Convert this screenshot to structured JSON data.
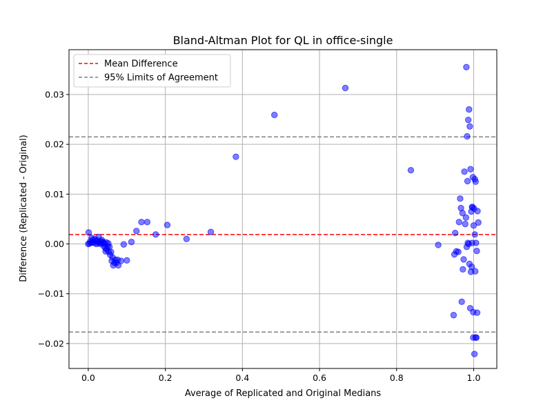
{
  "chart_data": {
    "type": "scatter",
    "title": "Bland-Altman Plot for QL in office-single",
    "xlabel": "Average of Replicated and Original Medians",
    "ylabel": "Difference (Replicated - Original)",
    "xlim": [
      -0.05,
      1.06
    ],
    "ylim": [
      -0.025,
      0.039
    ],
    "grid": true,
    "legend_position": "top-left",
    "xticks": [
      0.0,
      0.2,
      0.4,
      0.6,
      0.8,
      1.0
    ],
    "xtick_labels": [
      "0.0",
      "0.2",
      "0.4",
      "0.6",
      "0.8",
      "1.0"
    ],
    "yticks": [
      -0.02,
      -0.01,
      0.0,
      0.01,
      0.02,
      0.03
    ],
    "ytick_labels": [
      "−0.02",
      "−0.01",
      "0.00",
      "0.01",
      "0.02",
      "0.03"
    ],
    "colors": {
      "points": "#0000ff",
      "mean_line": "#ff0000",
      "limit_lines": "#808080",
      "grid": "#b0b0b0"
    },
    "reference_lines": [
      {
        "name": "Mean Difference",
        "y": 0.0019,
        "color": "#ff0000",
        "style": "dashed"
      },
      {
        "name": "95% Limits of Agreement",
        "y": 0.0215,
        "color": "#808080",
        "style": "dashed"
      },
      {
        "name": "",
        "y": -0.0177,
        "color": "#808080",
        "style": "dashed"
      }
    ],
    "legend": [
      "Mean Difference",
      "95% Limits of Agreement"
    ],
    "points": [
      {
        "x": 0.0,
        "y": 0.0
      },
      {
        "x": 0.001,
        "y": 0.0023
      },
      {
        "x": 0.003,
        "y": 0.0001
      },
      {
        "x": 0.005,
        "y": 0.0005
      },
      {
        "x": 0.007,
        "y": 0.0002
      },
      {
        "x": 0.009,
        "y": 0.0012
      },
      {
        "x": 0.011,
        "y": 0.0008
      },
      {
        "x": 0.013,
        "y": 0.0004
      },
      {
        "x": 0.015,
        "y": 0.0002
      },
      {
        "x": 0.017,
        "y": 0.001
      },
      {
        "x": 0.019,
        "y": 0.0006
      },
      {
        "x": 0.021,
        "y": 0.0
      },
      {
        "x": 0.023,
        "y": 0.0007
      },
      {
        "x": 0.025,
        "y": 0.0002
      },
      {
        "x": 0.027,
        "y": 0.0014
      },
      {
        "x": 0.029,
        "y": 0.0003
      },
      {
        "x": 0.031,
        "y": 0.0
      },
      {
        "x": 0.033,
        "y": 0.0005
      },
      {
        "x": 0.035,
        "y": 0.0008
      },
      {
        "x": 0.037,
        "y": 0.0002
      },
      {
        "x": 0.039,
        "y": 0.0004
      },
      {
        "x": 0.04,
        "y": -0.0004
      },
      {
        "x": 0.042,
        "y": 0.0001
      },
      {
        "x": 0.044,
        "y": -0.0008
      },
      {
        "x": 0.045,
        "y": -0.0015
      },
      {
        "x": 0.047,
        "y": 0.0003
      },
      {
        "x": 0.048,
        "y": -0.0011
      },
      {
        "x": 0.05,
        "y": -0.0005
      },
      {
        "x": 0.052,
        "y": 0.0001
      },
      {
        "x": 0.053,
        "y": -0.0016
      },
      {
        "x": 0.055,
        "y": -0.0006
      },
      {
        "x": 0.057,
        "y": -0.0022
      },
      {
        "x": 0.059,
        "y": -0.0016
      },
      {
        "x": 0.061,
        "y": -0.0034
      },
      {
        "x": 0.063,
        "y": -0.0027
      },
      {
        "x": 0.065,
        "y": -0.0043
      },
      {
        "x": 0.068,
        "y": -0.0038
      },
      {
        "x": 0.07,
        "y": -0.0032
      },
      {
        "x": 0.073,
        "y": -0.0038
      },
      {
        "x": 0.076,
        "y": -0.0032
      },
      {
        "x": 0.078,
        "y": -0.0043
      },
      {
        "x": 0.085,
        "y": -0.0034
      },
      {
        "x": 0.092,
        "y": -0.0001
      },
      {
        "x": 0.1,
        "y": -0.0033
      },
      {
        "x": 0.112,
        "y": 0.0004
      },
      {
        "x": 0.125,
        "y": 0.0026
      },
      {
        "x": 0.138,
        "y": 0.0044
      },
      {
        "x": 0.153,
        "y": 0.0044
      },
      {
        "x": 0.175,
        "y": 0.0019
      },
      {
        "x": 0.205,
        "y": 0.0038
      },
      {
        "x": 0.255,
        "y": 0.001
      },
      {
        "x": 0.318,
        "y": 0.0024
      },
      {
        "x": 0.383,
        "y": 0.0175
      },
      {
        "x": 0.483,
        "y": 0.0259
      },
      {
        "x": 0.667,
        "y": 0.0313
      },
      {
        "x": 0.837,
        "y": 0.0148
      },
      {
        "x": 0.908,
        "y": -0.0002
      },
      {
        "x": 0.948,
        "y": -0.0143
      },
      {
        "x": 0.95,
        "y": -0.0021
      },
      {
        "x": 0.952,
        "y": 0.0022
      },
      {
        "x": 0.955,
        "y": -0.0015
      },
      {
        "x": 0.96,
        "y": -0.0016
      },
      {
        "x": 0.962,
        "y": 0.0044
      },
      {
        "x": 0.965,
        "y": 0.0091
      },
      {
        "x": 0.967,
        "y": 0.0072
      },
      {
        "x": 0.969,
        "y": -0.0116
      },
      {
        "x": 0.971,
        "y": 0.0062
      },
      {
        "x": 0.972,
        "y": -0.0051
      },
      {
        "x": 0.974,
        "y": -0.0031
      },
      {
        "x": 0.976,
        "y": 0.0145
      },
      {
        "x": 0.978,
        "y": 0.004
      },
      {
        "x": 0.98,
        "y": 0.0053
      },
      {
        "x": 0.981,
        "y": 0.0355
      },
      {
        "x": 0.982,
        "y": -0.0006
      },
      {
        "x": 0.983,
        "y": 0.0216
      },
      {
        "x": 0.984,
        "y": 0.0126
      },
      {
        "x": 0.986,
        "y": 0.0249
      },
      {
        "x": 0.987,
        "y": 0.0
      },
      {
        "x": 0.988,
        "y": 0.027
      },
      {
        "x": 0.989,
        "y": -0.004
      },
      {
        "x": 0.99,
        "y": 0.0236
      },
      {
        "x": 0.991,
        "y": -0.0129
      },
      {
        "x": 0.992,
        "y": 0.015
      },
      {
        "x": 0.993,
        "y": -0.0056
      },
      {
        "x": 0.994,
        "y": 0.0065
      },
      {
        "x": 0.995,
        "y": -0.0046
      },
      {
        "x": 0.996,
        "y": 0.0002
      },
      {
        "x": 0.997,
        "y": 0.0074
      },
      {
        "x": 0.998,
        "y": 0.0134
      },
      {
        "x": 0.999,
        "y": -0.0188
      },
      {
        "x": 1.0,
        "y": 0.0037
      },
      {
        "x": 1.001,
        "y": 0.0071
      },
      {
        "x": 1.002,
        "y": -0.0221
      },
      {
        "x": 1.003,
        "y": 0.013
      },
      {
        "x": 1.003,
        "y": 0.0019
      },
      {
        "x": 1.004,
        "y": -0.0055
      },
      {
        "x": 1.005,
        "y": 0.0125
      },
      {
        "x": 1.005,
        "y": -0.0188
      },
      {
        "x": 1.006,
        "y": 0.0002
      },
      {
        "x": 1.007,
        "y": -0.0188
      },
      {
        "x": 1.008,
        "y": -0.0014
      },
      {
        "x": 1.009,
        "y": -0.0138
      },
      {
        "x": 1.01,
        "y": 0.0066
      },
      {
        "x": 1.012,
        "y": 0.0043
      },
      {
        "x": 0.999,
        "y": -0.0137
      },
      {
        "x": 0.996,
        "y": 0.0074
      },
      {
        "x": 0.985,
        "y": 0.0002
      }
    ]
  }
}
